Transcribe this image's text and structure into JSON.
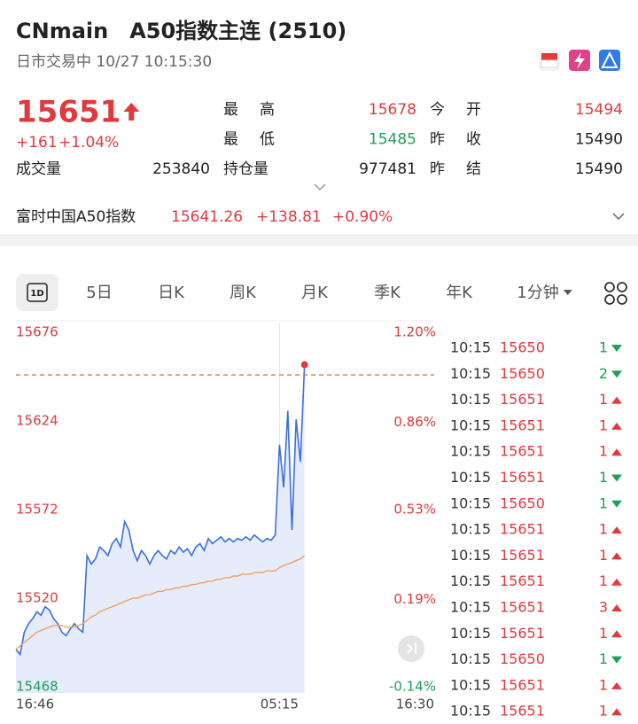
{
  "header": {
    "title": "CNmain　A50指数主连 (2510)",
    "status": "日市交易中 10/27 10:15:30"
  },
  "quote": {
    "price": 15651,
    "change": "+161",
    "percent": "+1.04%"
  },
  "stats": [
    {
      "label": "最高",
      "value": 15678,
      "color": "#e0393e"
    },
    {
      "label": "今开",
      "value": 15494,
      "color": "#e0393e"
    },
    {
      "label": "最低",
      "value": 15485,
      "color": "#1fa05a"
    },
    {
      "label": "昨收",
      "value": 15490,
      "color": "#222222"
    },
    {
      "label": "持仓量",
      "value": 977481,
      "color": "#222222"
    },
    {
      "label": "昨结",
      "value": 15490,
      "color": "#222222"
    }
  ],
  "volume": {
    "label": "成交量",
    "value": 253840
  },
  "index": {
    "name": "富时中国A50指数",
    "value": "15641.26",
    "change": "+138.81",
    "percent": "+0.90%"
  },
  "tabs": [
    "1D",
    "5日",
    "日K",
    "周K",
    "月K",
    "季K",
    "年K",
    "1分钟"
  ],
  "chart_data": {
    "type": "line",
    "x": [
      0,
      1,
      2,
      3,
      4,
      5,
      6,
      7,
      8,
      9,
      10,
      11,
      12,
      13,
      14,
      15,
      16,
      17,
      18,
      19,
      20,
      21,
      22,
      23,
      24,
      25,
      26,
      27,
      28,
      29,
      30,
      31,
      32,
      33,
      34,
      35,
      36,
      37,
      38,
      39,
      40,
      41,
      42,
      43,
      44,
      45,
      46,
      47,
      48,
      49,
      50,
      51,
      52,
      53,
      54,
      55,
      56,
      57,
      58,
      59,
      60,
      61,
      62,
      63,
      64,
      65,
      66,
      67,
      68,
      69
    ],
    "series": [
      {
        "color": "#3b6fe0",
        "values": [
          15490,
          15487,
          15500,
          15505,
          15508,
          15512,
          15510,
          15515,
          15513,
          15508,
          15505,
          15500,
          15498,
          15502,
          15505,
          15502,
          15500,
          15545,
          15540,
          15543,
          15550,
          15548,
          15545,
          15552,
          15555,
          15550,
          15565,
          15560,
          15548,
          15542,
          15548,
          15545,
          15540,
          15545,
          15548,
          15545,
          15543,
          15548,
          15546,
          15550,
          15547,
          15549,
          15545,
          15550,
          15552,
          15548,
          15555,
          15552,
          15554,
          15556,
          15553,
          15555,
          15553,
          15555,
          15554,
          15556,
          15554,
          15557,
          15555,
          15553,
          15555,
          15554,
          15557,
          15610,
          15585,
          15630,
          15560,
          15625,
          15600,
          15657
        ]
      },
      {
        "color": "#f0a060",
        "values": [
          15490,
          15492,
          15494,
          15496,
          15498,
          15500,
          15501,
          15502,
          15503,
          15504,
          15504,
          15504,
          15503,
          15503,
          15503,
          15504,
          15505,
          15507,
          15509,
          15510,
          15512,
          15513,
          15514,
          15515,
          15516,
          15517,
          15518,
          15519,
          15520,
          15520,
          15521,
          15522,
          15522,
          15523,
          15524,
          15524,
          15525,
          15525,
          15526,
          15526,
          15527,
          15527,
          15528,
          15528,
          15529,
          15529,
          15530,
          15530,
          15531,
          15531,
          15532,
          15532,
          15533,
          15533,
          15534,
          15534,
          15534,
          15535,
          15535,
          15535,
          15536,
          15536,
          15536,
          15538,
          15539,
          15540,
          15541,
          15542,
          15543,
          15545
        ]
      }
    ],
    "xlim": [
      0,
      100
    ],
    "xticks": [
      {
        "value": 0,
        "label": "16:46"
      },
      {
        "value": 63,
        "label": "05:15"
      },
      {
        "value": 100,
        "label": "16:30"
      }
    ],
    "ylim": [
      15468,
      15676
    ],
    "yticks": [
      15676,
      15624,
      15572,
      15520,
      15468
    ],
    "y2lim": [
      -0.14,
      1.2
    ],
    "y2ticks": [
      {
        "value": 1.2,
        "label": "1.20%"
      },
      {
        "value": 0.86,
        "label": "0.86%"
      },
      {
        "value": 0.53,
        "label": "0.53%"
      },
      {
        "value": 0.19,
        "label": "0.19%"
      },
      {
        "value": -0.14,
        "label": "-0.14%"
      }
    ]
  },
  "trades": [
    {
      "time": "10:15",
      "price": 15650,
      "volume": 1,
      "dir": "down"
    },
    {
      "time": "10:15",
      "price": 15650,
      "volume": 2,
      "dir": "down"
    },
    {
      "time": "10:15",
      "price": 15651,
      "volume": 1,
      "dir": "up"
    },
    {
      "time": "10:15",
      "price": 15651,
      "volume": 1,
      "dir": "up"
    },
    {
      "time": "10:15",
      "price": 15651,
      "volume": 1,
      "dir": "up"
    },
    {
      "time": "10:15",
      "price": 15651,
      "volume": 1,
      "dir": "down"
    },
    {
      "time": "10:15",
      "price": 15650,
      "volume": 1,
      "dir": "down"
    },
    {
      "time": "10:15",
      "price": 15651,
      "volume": 1,
      "dir": "up"
    },
    {
      "time": "10:15",
      "price": 15651,
      "volume": 1,
      "dir": "up"
    },
    {
      "time": "10:15",
      "price": 15651,
      "volume": 1,
      "dir": "up"
    },
    {
      "time": "10:15",
      "price": 15651,
      "volume": 3,
      "dir": "up"
    },
    {
      "time": "10:15",
      "price": 15651,
      "volume": 1,
      "dir": "up"
    },
    {
      "time": "10:15",
      "price": 15650,
      "volume": 1,
      "dir": "down"
    },
    {
      "time": "10:15",
      "price": 15651,
      "volume": 1,
      "dir": "up"
    },
    {
      "time": "10:15",
      "price": 15651,
      "volume": 1,
      "dir": "up"
    }
  ]
}
